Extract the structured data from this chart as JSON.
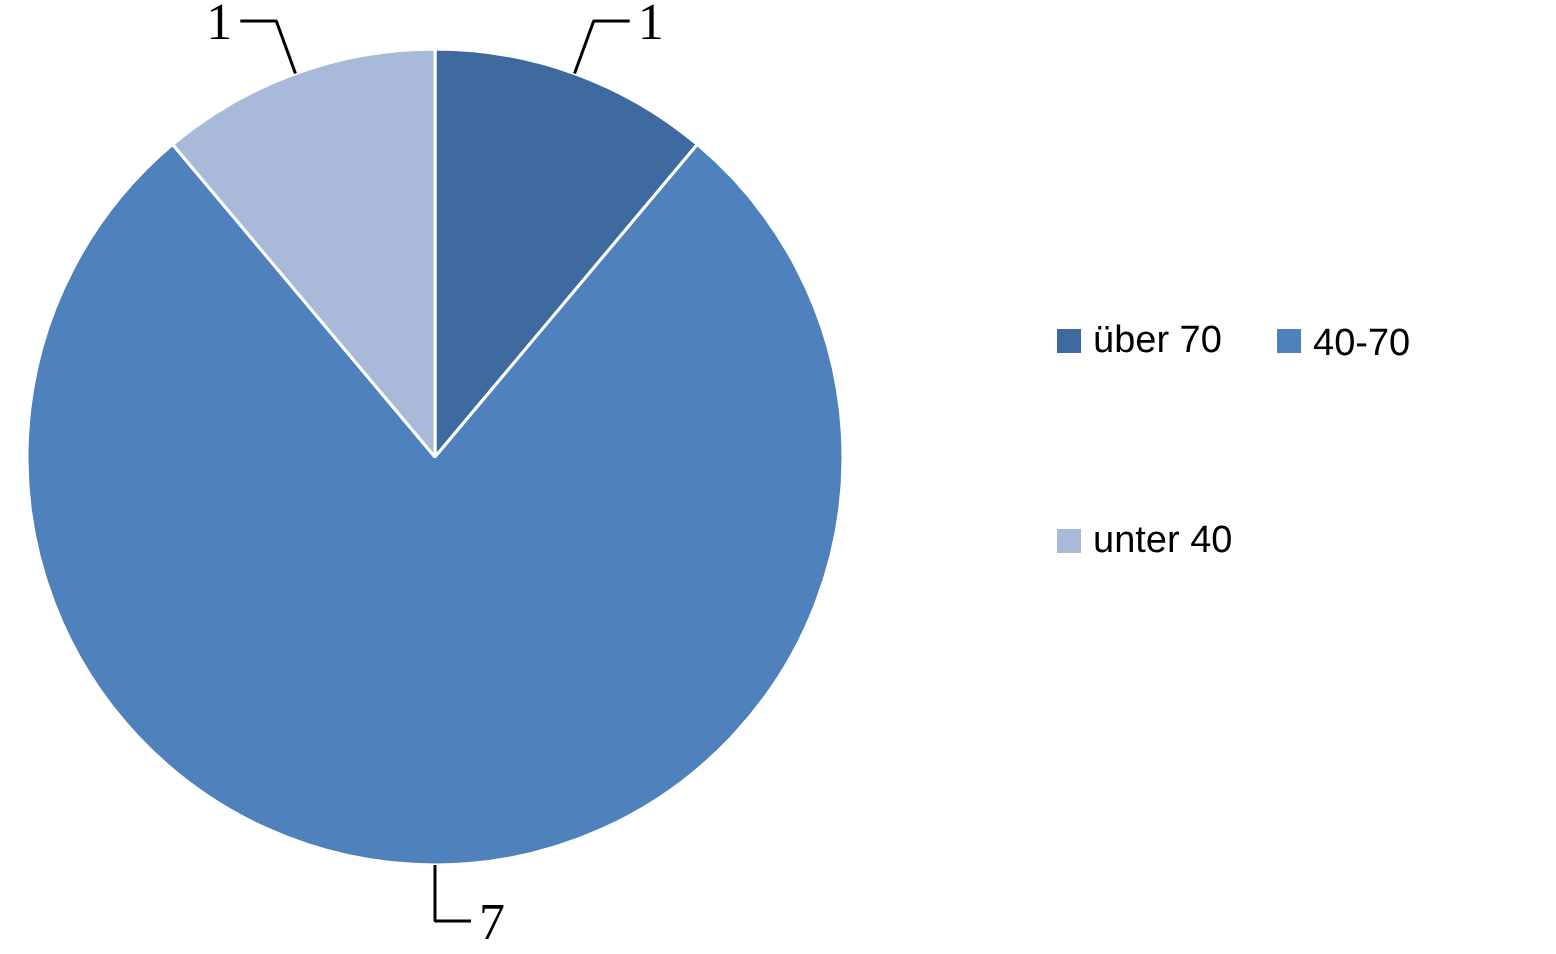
{
  "chart_data": {
    "type": "pie",
    "categories": [
      "über 70",
      "40-70",
      "unter 40"
    ],
    "values": [
      1,
      7,
      1
    ],
    "colors": [
      "#3e6aa0",
      "#4f81bd",
      "#a9b9d9"
    ],
    "data_labels": true,
    "legend": "right"
  }
}
